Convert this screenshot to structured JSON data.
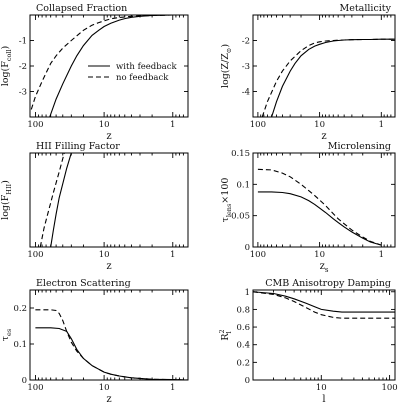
{
  "figure": {
    "background": "#ffffff",
    "line_color": "#000000"
  },
  "chart_data": [
    {
      "type": "line",
      "title": "Collapsed Fraction",
      "xlabel": "z",
      "ylabel_main": "log(F",
      "ylabel_sub": "coll",
      "ylabel_tail": ")",
      "x_scale": "log",
      "x_reversed": true,
      "xlim": [
        120,
        0.6
      ],
      "ylim": [
        -4,
        0
      ],
      "xticks": [
        100,
        10,
        1
      ],
      "yticks": [
        -3,
        -2,
        -1
      ],
      "legend": [
        {
          "label": "with feedback",
          "style": "solid"
        },
        {
          "label": "no feedback",
          "style": "dashed"
        }
      ],
      "series": [
        {
          "name": "with feedback",
          "style": "solid",
          "x": [
            62,
            50,
            40,
            30,
            25,
            20,
            15,
            12,
            10,
            8,
            6,
            5,
            4,
            3,
            2,
            1.5,
            1,
            0.6
          ],
          "y": [
            -4,
            -3.3,
            -2.7,
            -2.0,
            -1.6,
            -1.2,
            -0.8,
            -0.6,
            -0.45,
            -0.32,
            -0.2,
            -0.14,
            -0.09,
            -0.05,
            -0.02,
            -0.01,
            0,
            0
          ]
        },
        {
          "name": "no feedback",
          "style": "dashed",
          "x": [
            115,
            100,
            80,
            60,
            50,
            40,
            30,
            20,
            15,
            12,
            10,
            8,
            6,
            4,
            2,
            1,
            0.6
          ],
          "y": [
            -3.7,
            -3.2,
            -2.6,
            -1.9,
            -1.6,
            -1.3,
            -1.0,
            -0.6,
            -0.4,
            -0.3,
            -0.23,
            -0.15,
            -0.1,
            -0.05,
            -0.02,
            0,
            0
          ]
        }
      ]
    },
    {
      "type": "line",
      "title": "Metallicity",
      "xlabel": "z",
      "ylabel_main": "log(Z/Z",
      "ylabel_sub": "⊙",
      "ylabel_tail": ")",
      "x_scale": "log",
      "x_reversed": true,
      "xlim": [
        120,
        0.6
      ],
      "ylim": [
        -5,
        -1
      ],
      "xticks": [
        100,
        10,
        1
      ],
      "yticks": [
        -4,
        -3,
        -2
      ],
      "series": [
        {
          "name": "with feedback",
          "style": "solid",
          "x": [
            60,
            50,
            40,
            30,
            25,
            20,
            15,
            12,
            10,
            8,
            6,
            5,
            4,
            3,
            2,
            1.5,
            1,
            0.6
          ],
          "y": [
            -5,
            -4.4,
            -3.8,
            -3.2,
            -2.9,
            -2.6,
            -2.35,
            -2.22,
            -2.15,
            -2.08,
            -2.02,
            -2.0,
            -1.98,
            -1.97,
            -1.96,
            -1.96,
            -1.95,
            -1.95
          ]
        },
        {
          "name": "no feedback",
          "style": "dashed",
          "x": [
            85,
            70,
            50,
            40,
            30,
            20,
            15,
            12,
            10,
            8,
            6,
            5,
            4,
            3,
            2,
            1.5,
            1,
            0.6
          ],
          "y": [
            -5,
            -4.4,
            -3.6,
            -3.2,
            -2.8,
            -2.4,
            -2.2,
            -2.1,
            -2.05,
            -2.02,
            -2.0,
            -1.99,
            -1.98,
            -1.97,
            -1.96,
            -1.96,
            -1.95,
            -1.95
          ]
        }
      ]
    },
    {
      "type": "line",
      "title": "HII Filling Factor",
      "xlabel": "z",
      "ylabel_main": "log(F",
      "ylabel_sub": "HII",
      "ylabel_tail": ")",
      "x_scale": "log",
      "x_reversed": true,
      "xlim": [
        120,
        0.6
      ],
      "ylim": [
        -4,
        0
      ],
      "xticks": [
        100,
        10,
        1
      ],
      "yticks": [],
      "series": [
        {
          "name": "with feedback",
          "style": "solid",
          "x": [
            60,
            55,
            50,
            45,
            40,
            35,
            30
          ],
          "y": [
            -4,
            -3.3,
            -2.6,
            -1.9,
            -1.3,
            -0.65,
            0
          ]
        },
        {
          "name": "no feedback",
          "style": "dashed",
          "x": [
            85,
            75,
            65,
            55,
            45,
            38
          ],
          "y": [
            -4,
            -3.2,
            -2.5,
            -1.7,
            -0.8,
            0
          ]
        }
      ]
    },
    {
      "type": "line",
      "title": "Microlensing",
      "xlabel": "z",
      "xlabel_sub": "s",
      "ylabel_main": "τ",
      "ylabel_sub": "lens",
      "ylabel_tail": "×100",
      "x_scale": "log",
      "x_reversed": true,
      "xlim": [
        120,
        0.6
      ],
      "ylim": [
        0,
        0.15
      ],
      "xticks": [
        100,
        10,
        1
      ],
      "yticks": [
        0,
        0.05,
        0.1,
        0.15
      ],
      "series": [
        {
          "name": "with feedback",
          "style": "solid",
          "x": [
            100,
            60,
            40,
            30,
            20,
            15,
            12,
            10,
            8,
            6,
            5,
            4,
            3,
            2,
            1.5,
            1
          ],
          "y": [
            0.088,
            0.088,
            0.087,
            0.085,
            0.08,
            0.074,
            0.068,
            0.062,
            0.055,
            0.045,
            0.039,
            0.032,
            0.024,
            0.014,
            0.008,
            0.003
          ]
        },
        {
          "name": "no feedback",
          "style": "dashed",
          "x": [
            100,
            60,
            40,
            30,
            20,
            15,
            12,
            10,
            8,
            6,
            5,
            4,
            3,
            2,
            1.5,
            1
          ],
          "y": [
            0.124,
            0.123,
            0.118,
            0.112,
            0.1,
            0.09,
            0.082,
            0.075,
            0.066,
            0.053,
            0.045,
            0.037,
            0.027,
            0.016,
            0.009,
            0.003
          ]
        }
      ]
    },
    {
      "type": "line",
      "title": "Electron Scattering",
      "xlabel": "z",
      "ylabel_main": "τ",
      "ylabel_sub": "es",
      "ylabel_tail": "",
      "x_scale": "log",
      "x_reversed": true,
      "xlim": [
        120,
        0.6
      ],
      "ylim": [
        0,
        0.25
      ],
      "xticks": [
        100,
        10,
        1
      ],
      "yticks": [
        0,
        0.1,
        0.2
      ],
      "series": [
        {
          "name": "with feedback",
          "style": "solid",
          "x": [
            100,
            80,
            60,
            45,
            35,
            30,
            25,
            20,
            15,
            10,
            8,
            6,
            4,
            2,
            1,
            0.6
          ],
          "y": [
            0.145,
            0.145,
            0.145,
            0.143,
            0.135,
            0.115,
            0.085,
            0.06,
            0.04,
            0.022,
            0.016,
            0.011,
            0.006,
            0.002,
            0.001,
            0.0
          ]
        },
        {
          "name": "no feedback",
          "style": "dashed",
          "x": [
            100,
            80,
            60,
            50,
            45,
            40,
            35,
            30,
            25,
            20,
            15,
            10,
            8,
            6,
            4,
            2,
            1,
            0.6
          ],
          "y": [
            0.195,
            0.195,
            0.195,
            0.193,
            0.185,
            0.165,
            0.135,
            0.105,
            0.08,
            0.06,
            0.04,
            0.022,
            0.016,
            0.011,
            0.006,
            0.002,
            0.001,
            0.0
          ]
        }
      ]
    },
    {
      "type": "line",
      "title": "CMB Anisotropy Damping",
      "xlabel": "l",
      "ylabel_main": "R",
      "ylabel_sub": "l",
      "ylabel_sup": "2",
      "ylabel_tail": "",
      "x_scale": "log",
      "x_reversed": false,
      "xlim": [
        1,
        120
      ],
      "ylim": [
        0,
        1.02
      ],
      "xticks": [
        10,
        100
      ],
      "yticks": [
        0,
        0.2,
        0.4,
        0.6,
        0.8,
        1
      ],
      "series": [
        {
          "name": "with feedback",
          "style": "solid",
          "x": [
            1,
            2,
            3,
            4,
            6,
            8,
            10,
            15,
            20,
            30,
            50,
            70,
            100,
            120
          ],
          "y": [
            1.0,
            0.98,
            0.95,
            0.92,
            0.87,
            0.83,
            0.8,
            0.78,
            0.77,
            0.77,
            0.77,
            0.77,
            0.77,
            0.77
          ]
        },
        {
          "name": "no feedback",
          "style": "dashed",
          "x": [
            1,
            2,
            3,
            4,
            6,
            8,
            10,
            15,
            20,
            30,
            50,
            70,
            100,
            120
          ],
          "y": [
            1.0,
            0.97,
            0.93,
            0.89,
            0.82,
            0.77,
            0.74,
            0.71,
            0.7,
            0.7,
            0.7,
            0.7,
            0.7,
            0.7
          ]
        }
      ]
    }
  ]
}
